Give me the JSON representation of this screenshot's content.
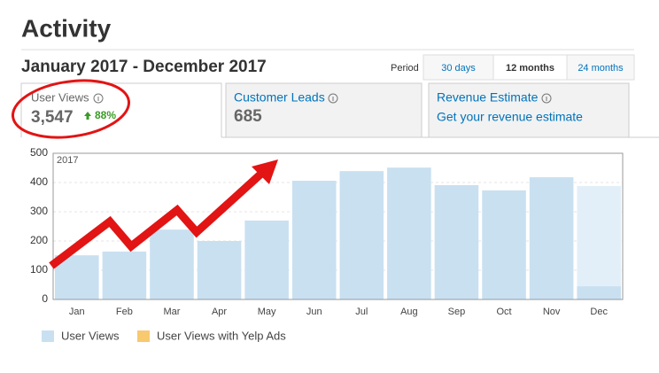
{
  "header": {
    "title": "Activity"
  },
  "date_range": "January 2017 - December 2017",
  "period": {
    "label": "Period",
    "options": [
      "30 days",
      "12 months",
      "24 months"
    ],
    "selected": 1
  },
  "tabs": [
    {
      "label": "User Views",
      "value": "3,547",
      "change": "88%"
    },
    {
      "label": "Customer Leads",
      "value": "685"
    },
    {
      "label": "Revenue Estimate",
      "link": "Get your revenue estimate"
    }
  ],
  "chart_data": {
    "type": "bar",
    "year_label": "2017",
    "categories": [
      "Jan",
      "Feb",
      "Mar",
      "Apr",
      "May",
      "Jun",
      "Jul",
      "Aug",
      "Sep",
      "Oct",
      "Nov",
      "Dec"
    ],
    "series": [
      {
        "name": "User Views",
        "color": "#c9e0f1",
        "values": [
          151,
          164,
          239,
          200,
          270,
          406,
          439,
          451,
          391,
          373,
          418,
          45
        ]
      },
      {
        "name": "User Views with Yelp Ads",
        "color": "#f8c96f",
        "values": [
          null,
          null,
          null,
          null,
          null,
          null,
          null,
          null,
          null,
          null,
          null,
          null
        ]
      }
    ],
    "projected": {
      "color": "#e3eff8",
      "values": [
        null,
        null,
        null,
        null,
        null,
        null,
        null,
        null,
        null,
        null,
        null,
        388
      ]
    },
    "ylim": [
      0,
      500
    ],
    "yticks": [
      0,
      100,
      200,
      300,
      400,
      500
    ],
    "grid": true
  }
}
